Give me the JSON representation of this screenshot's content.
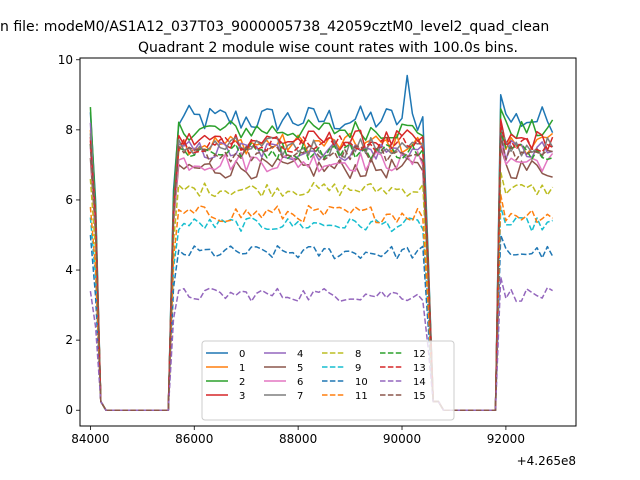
{
  "header": {
    "suptitle": "n file: modeM0/AS1A12_037T03_9000005738_42059cztM0_level2_quad_clean"
  },
  "chart_data": {
    "type": "line",
    "title": "Quadrant 2 module wise count rates with 100.0s bins.",
    "xlabel": "",
    "ylabel": "",
    "x_offset_label": "+4.265e8",
    "xlim": [
      83800,
      93350
    ],
    "ylim": [
      -0.45,
      10.05
    ],
    "x_ticks": [
      84000,
      86000,
      88000,
      90000,
      92000
    ],
    "x_tick_labels": [
      "84000",
      "86000",
      "88000",
      "90000",
      "92000"
    ],
    "y_ticks": [
      0,
      2,
      4,
      6,
      8,
      10
    ],
    "y_tick_labels": [
      "0",
      "2",
      "4",
      "6",
      "8",
      "10"
    ],
    "grid": false,
    "legend_position": "lower-center",
    "legend_columns": 4,
    "segments": [
      {
        "start": 84000,
        "end": 84100,
        "kind": "start"
      },
      {
        "start": 84200,
        "end": 85500,
        "kind": "gap"
      },
      {
        "start": 85600,
        "end": 90400,
        "kind": "plateau"
      },
      {
        "start": 90500,
        "end": 90600,
        "kind": "drop"
      },
      {
        "start": 90700,
        "end": 91800,
        "kind": "gap"
      },
      {
        "start": 91900,
        "end": 92900,
        "kind": "plateau"
      }
    ],
    "series": [
      {
        "name": "0",
        "color": "#1f77b4",
        "dash": false,
        "level": 8.3,
        "jitter": 0.4,
        "start_value": 8.5,
        "peak": {
          "x": 90100,
          "y": 9.55
        }
      },
      {
        "name": "1",
        "color": "#ff7f0e",
        "dash": false,
        "level": 7.6,
        "jitter": 0.3,
        "start_value": 8.0
      },
      {
        "name": "2",
        "color": "#2ca02c",
        "dash": false,
        "level": 8.0,
        "jitter": 0.3,
        "start_value": 8.65
      },
      {
        "name": "3",
        "color": "#d62728",
        "dash": false,
        "level": 7.7,
        "jitter": 0.3,
        "start_value": 7.8
      },
      {
        "name": "4",
        "color": "#9467bd",
        "dash": false,
        "level": 7.4,
        "jitter": 0.3,
        "start_value": 8.2
      },
      {
        "name": "5",
        "color": "#8c564b",
        "dash": false,
        "level": 6.9,
        "jitter": 0.3,
        "start_value": 7.2
      },
      {
        "name": "6",
        "color": "#e377c2",
        "dash": false,
        "level": 7.1,
        "jitter": 0.3,
        "start_value": 7.5
      },
      {
        "name": "7",
        "color": "#7f7f7f",
        "dash": false,
        "level": 7.5,
        "jitter": 0.3,
        "start_value": 7.9
      },
      {
        "name": "8",
        "color": "#bcbd22",
        "dash": true,
        "level": 6.3,
        "jitter": 0.2,
        "start_value": 6.6
      },
      {
        "name": "9",
        "color": "#17becf",
        "dash": true,
        "level": 5.3,
        "jitter": 0.2,
        "start_value": 5.5
      },
      {
        "name": "10",
        "color": "#1f77b4",
        "dash": true,
        "level": 4.5,
        "jitter": 0.2,
        "start_value": 5.0
      },
      {
        "name": "11",
        "color": "#ff7f0e",
        "dash": true,
        "level": 5.6,
        "jitter": 0.25,
        "start_value": 5.8
      },
      {
        "name": "12",
        "color": "#2ca02c",
        "dash": true,
        "level": 7.4,
        "jitter": 0.25,
        "start_value": 7.6
      },
      {
        "name": "13",
        "color": "#d62728",
        "dash": true,
        "level": 7.6,
        "jitter": 0.25,
        "start_value": 7.7
      },
      {
        "name": "14",
        "color": "#9467bd",
        "dash": true,
        "level": 3.3,
        "jitter": 0.2,
        "start_value": 3.4
      },
      {
        "name": "15",
        "color": "#8c564b",
        "dash": true,
        "level": 7.3,
        "jitter": 0.25,
        "start_value": 7.6
      }
    ]
  }
}
